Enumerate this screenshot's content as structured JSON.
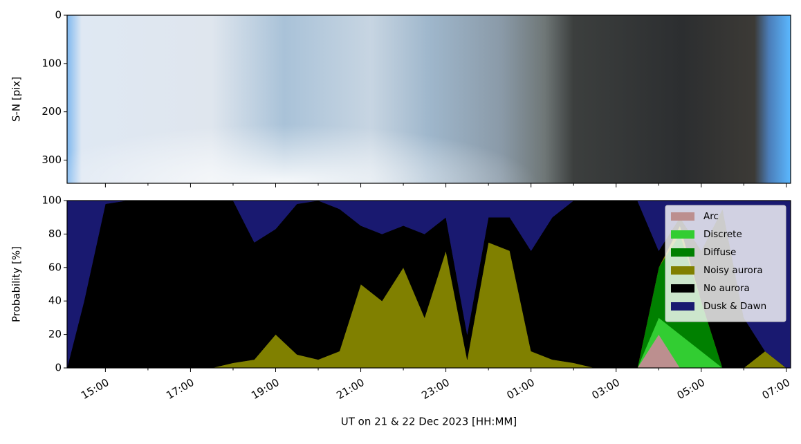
{
  "chart_data": [
    {
      "type": "image",
      "ylabel": "S-N [pix]",
      "ylim": [
        0,
        348
      ],
      "y_inverted": true,
      "yticks": [
        0,
        100,
        200,
        300
      ],
      "xlim": [
        14.1,
        31.1
      ],
      "xticks": [
        15,
        17,
        19,
        21,
        23,
        25,
        27,
        29,
        31
      ],
      "xminorticks": [
        16,
        18,
        20,
        22,
        24,
        26,
        28,
        30
      ]
    },
    {
      "type": "area",
      "stacked": true,
      "ylabel": "Probability [%]",
      "xlabel": "UT on 21 & 22 Dec 2023 [HH:MM]",
      "xlim": [
        14.1,
        31.1
      ],
      "xticks": [
        {
          "value": 15,
          "label": "15:00"
        },
        {
          "value": 17,
          "label": "17:00"
        },
        {
          "value": 19,
          "label": "19:00"
        },
        {
          "value": 21,
          "label": "21:00"
        },
        {
          "value": 23,
          "label": "23:00"
        },
        {
          "value": 25,
          "label": "01:00"
        },
        {
          "value": 27,
          "label": "03:00"
        },
        {
          "value": 29,
          "label": "05:00"
        },
        {
          "value": 31,
          "label": "07:00"
        }
      ],
      "xminorticks": [
        16,
        18,
        20,
        22,
        24,
        26,
        28,
        30
      ],
      "ylim": [
        0,
        100
      ],
      "yticks": [
        0,
        20,
        40,
        60,
        80,
        100
      ],
      "legend": "upper right",
      "x": [
        14.1,
        14.5,
        15,
        15.5,
        16,
        16.5,
        17,
        17.5,
        18,
        18.5,
        19,
        19.5,
        20,
        20.5,
        21,
        21.5,
        22,
        22.5,
        23,
        23.5,
        24,
        24.5,
        25,
        25.5,
        26,
        26.5,
        27,
        27.5,
        28,
        28.5,
        29,
        29.5,
        30,
        30.5,
        31,
        31.1
      ],
      "series": [
        {
          "name": "Arc",
          "color": "#bc8f8f",
          "values": [
            0,
            0,
            0,
            0,
            0,
            0,
            0,
            0,
            0,
            0,
            0,
            0,
            0,
            0,
            0,
            0,
            0,
            0,
            0,
            0,
            0,
            0,
            0,
            0,
            0,
            0,
            0,
            0,
            20,
            0,
            0,
            0,
            0,
            0,
            0,
            0
          ]
        },
        {
          "name": "Discrete",
          "color": "#32cd32",
          "values": [
            0,
            0,
            0,
            0,
            0,
            0,
            0,
            0,
            0,
            0,
            0,
            0,
            0,
            0,
            0,
            0,
            0,
            0,
            0,
            0,
            0,
            0,
            0,
            0,
            0,
            0,
            0,
            0,
            10,
            20,
            10,
            0,
            0,
            0,
            0,
            0
          ]
        },
        {
          "name": "Diffuse",
          "color": "#008000",
          "values": [
            0,
            0,
            0,
            0,
            0,
            0,
            0,
            0,
            0,
            0,
            0,
            0,
            0,
            0,
            0,
            0,
            0,
            0,
            0,
            0,
            0,
            0,
            0,
            0,
            0,
            0,
            0,
            0,
            30,
            60,
            30,
            0,
            0,
            0,
            0,
            0
          ]
        },
        {
          "name": "Noisy aurora",
          "color": "#808000",
          "values": [
            0,
            0,
            0,
            0,
            0,
            0,
            0,
            0,
            3,
            5,
            20,
            8,
            5,
            10,
            50,
            40,
            60,
            30,
            70,
            5,
            75,
            70,
            10,
            5,
            3,
            0,
            0,
            0,
            0,
            5,
            0,
            0,
            0,
            10,
            0,
            0
          ]
        },
        {
          "name": "No aurora",
          "color": "#000000",
          "values": [
            0,
            40,
            98,
            100,
            100,
            100,
            100,
            100,
            97,
            70,
            63,
            90,
            95,
            85,
            35,
            40,
            25,
            50,
            20,
            15,
            15,
            20,
            60,
            85,
            97,
            100,
            100,
            100,
            10,
            5,
            30,
            95,
            30,
            0,
            0,
            0
          ]
        },
        {
          "name": "Dusk & Dawn",
          "color": "#191970",
          "values": [
            100,
            60,
            2,
            0,
            0,
            0,
            0,
            0,
            0,
            25,
            17,
            2,
            0,
            5,
            15,
            20,
            15,
            20,
            10,
            80,
            10,
            10,
            30,
            10,
            0,
            0,
            0,
            0,
            30,
            10,
            30,
            5,
            70,
            90,
            100,
            100
          ]
        }
      ]
    }
  ]
}
